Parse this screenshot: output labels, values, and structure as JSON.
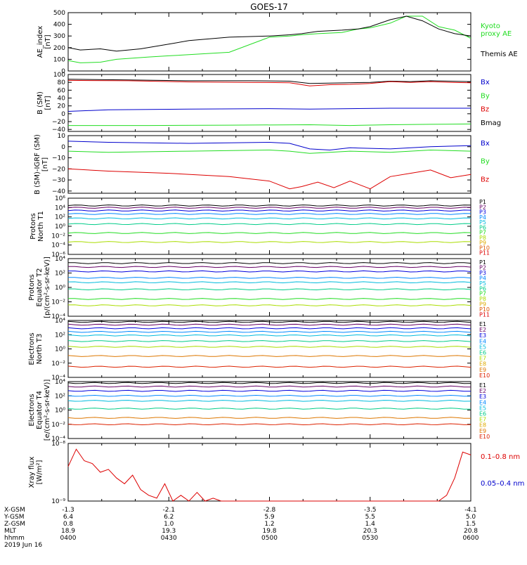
{
  "title": "GOES-17",
  "colors": {
    "black": "#000000",
    "green": "#22dd22",
    "blue": "#0000cc",
    "red": "#dd0000",
    "p": [
      "#000000",
      "#660066",
      "#0000dd",
      "#0088ff",
      "#00bbdd",
      "#00cc88",
      "#22dd22",
      "#aadd00",
      "#ddaa00",
      "#dd5500",
      "#dd0000"
    ],
    "e": [
      "#000000",
      "#660066",
      "#0000dd",
      "#0088ff",
      "#00bbdd",
      "#00cc88",
      "#aadd00",
      "#ddaa00",
      "#dd7700",
      "#dd2200",
      "#dd0000"
    ]
  },
  "footer": {
    "row_labels": [
      "X-GSM",
      "Y-GSM",
      "Z-GSM",
      "MLT",
      "hhmm",
      "2019 Jun 16"
    ],
    "columns": [
      {
        "x_gsm": "-1.3",
        "y_gsm": "6.4",
        "z_gsm": "0.8",
        "mlt": "18.9",
        "hhmm": "0400"
      },
      {
        "x_gsm": "-2.1",
        "y_gsm": "6.2",
        "z_gsm": "1.0",
        "mlt": "19.3",
        "hhmm": "0430"
      },
      {
        "x_gsm": "-2.8",
        "y_gsm": "5.9",
        "z_gsm": "1.2",
        "mlt": "19.8",
        "hhmm": "0500"
      },
      {
        "x_gsm": "-3.5",
        "y_gsm": "5.5",
        "z_gsm": "1.4",
        "mlt": "20.3",
        "hhmm": "0530"
      },
      {
        "x_gsm": "-4.1",
        "y_gsm": "5.0",
        "z_gsm": "1.5",
        "mlt": "20.8",
        "hhmm": "0600"
      }
    ]
  },
  "chart_data": [
    {
      "id": "ae",
      "type": "line",
      "ylabel": [
        "AE_index",
        "[nT]"
      ],
      "ylim": [
        0,
        500
      ],
      "yticks": [
        "0",
        "100",
        "200",
        "300",
        "400",
        "500"
      ],
      "legend": [
        {
          "label": "Kyoto",
          "color": "green"
        },
        {
          "label": "proxy AE",
          "color": "green"
        },
        {
          "label": "Themis AE",
          "color": "black"
        }
      ],
      "series": [
        {
          "name": "Kyoto proxy AE",
          "color": "green",
          "x": [
            0,
            3,
            8,
            12,
            20,
            25,
            30,
            40,
            50,
            55,
            58,
            62,
            68,
            72,
            75,
            80,
            84,
            88,
            92,
            96,
            100
          ],
          "y": [
            90,
            70,
            75,
            100,
            120,
            130,
            140,
            160,
            290,
            300,
            310,
            320,
            330,
            360,
            370,
            410,
            470,
            470,
            380,
            350,
            280
          ]
        },
        {
          "name": "Themis AE",
          "color": "black",
          "x": [
            0,
            3,
            8,
            12,
            18,
            25,
            30,
            40,
            50,
            55,
            58,
            62,
            68,
            72,
            75,
            80,
            84,
            88,
            92,
            96,
            100
          ],
          "y": [
            200,
            180,
            190,
            170,
            190,
            230,
            260,
            290,
            300,
            310,
            320,
            340,
            350,
            360,
            380,
            440,
            470,
            430,
            360,
            320,
            300
          ]
        }
      ]
    },
    {
      "id": "b",
      "type": "line",
      "ylabel": [
        "B (SM)",
        "[nT]"
      ],
      "ylim": [
        -45,
        100
      ],
      "yticks": [
        "−40",
        "−20",
        "0",
        "20",
        "40",
        "60",
        "80",
        "100"
      ],
      "legend": [
        {
          "label": "Bx",
          "color": "blue"
        },
        {
          "label": "By",
          "color": "green"
        },
        {
          "label": "Bz",
          "color": "red"
        },
        {
          "label": "Bmag",
          "color": "black"
        }
      ],
      "series": [
        {
          "name": "Bmag",
          "color": "black",
          "x": [
            0,
            15,
            30,
            45,
            55,
            60,
            65,
            70,
            75,
            80,
            85,
            90,
            95,
            100
          ],
          "y": [
            88,
            86,
            84,
            84,
            83,
            77,
            78,
            79,
            80,
            83,
            82,
            84,
            83,
            82
          ]
        },
        {
          "name": "Bz",
          "color": "red",
          "x": [
            0,
            15,
            30,
            45,
            55,
            60,
            65,
            70,
            75,
            80,
            85,
            90,
            95,
            100
          ],
          "y": [
            85,
            84,
            81,
            80,
            79,
            71,
            74,
            75,
            77,
            82,
            80,
            82,
            80,
            79
          ]
        },
        {
          "name": "Bx",
          "color": "blue",
          "x": [
            0,
            10,
            30,
            50,
            60,
            70,
            80,
            90,
            100
          ],
          "y": [
            6,
            10,
            12,
            13,
            12,
            13,
            14,
            14,
            14
          ]
        },
        {
          "name": "By",
          "color": "green",
          "x": [
            0,
            20,
            40,
            60,
            70,
            80,
            90,
            100
          ],
          "y": [
            -30,
            -30,
            -29,
            -28,
            -30,
            -28,
            -27,
            -26
          ]
        }
      ]
    },
    {
      "id": "bdiff",
      "type": "line",
      "ylabel": [
        "B (SM)-IGRF (SM)",
        "[nT]"
      ],
      "ylim": [
        -42,
        10
      ],
      "yticks": [
        "−40",
        "−30",
        "−20",
        "−10",
        "0",
        "10"
      ],
      "legend": [
        {
          "label": "Bx",
          "color": "blue"
        },
        {
          "label": "By",
          "color": "green"
        },
        {
          "label": "Bz",
          "color": "red"
        }
      ],
      "series": [
        {
          "name": "Bx",
          "color": "blue",
          "x": [
            0,
            10,
            30,
            50,
            55,
            60,
            65,
            70,
            80,
            90,
            100
          ],
          "y": [
            5,
            4,
            3,
            4,
            3,
            -2,
            -3,
            -1,
            -2,
            0,
            1
          ]
        },
        {
          "name": "By",
          "color": "green",
          "x": [
            0,
            10,
            30,
            50,
            55,
            60,
            65,
            70,
            80,
            90,
            100
          ],
          "y": [
            -4,
            -5,
            -4,
            -3,
            -4,
            -6,
            -5,
            -4,
            -5,
            -3,
            -4
          ]
        },
        {
          "name": "Bz",
          "color": "red",
          "x": [
            0,
            10,
            25,
            40,
            50,
            55,
            58,
            62,
            66,
            70,
            75,
            80,
            85,
            90,
            95,
            100
          ],
          "y": [
            -20,
            -22,
            -24,
            -27,
            -31,
            -38,
            -36,
            -32,
            -37,
            -31,
            -38,
            -27,
            -24,
            -21,
            -28,
            -25
          ]
        }
      ]
    },
    {
      "id": "pn",
      "type": "line",
      "ylabel": [
        "Protons",
        "North T1"
      ],
      "ylog": [
        -6,
        4
      ],
      "yticks": [
        "10⁶",
        "10⁴",
        "10²",
        "10⁰",
        "10⁻²",
        "10⁻⁴",
        "10⁻⁶"
      ],
      "legend": [
        "P1",
        "P2",
        "P3",
        "P4",
        "P5",
        "P6",
        "P7",
        "P8",
        "P9",
        "P10",
        "P11"
      ],
      "series": [
        {
          "name": "P1",
          "log10": 2.7
        },
        {
          "name": "P2",
          "log10": 2.3
        },
        {
          "name": "P3",
          "log10": 1.8
        },
        {
          "name": "P4",
          "log10": 1.2
        },
        {
          "name": "P5",
          "log10": 0.4
        },
        {
          "name": "P6",
          "log10": -0.6
        },
        {
          "name": "P7",
          "log10": -2.2
        },
        {
          "name": "P8",
          "log10": -3.8
        }
      ]
    },
    {
      "id": "pe",
      "type": "line",
      "ylabel": [
        "Protons",
        "Equator T2",
        "[p/(cm²-s-sr-keV)]"
      ],
      "ylog": [
        -5,
        4
      ],
      "yticks": [
        "10⁴",
        "10²",
        "10⁰",
        "10⁻²",
        "10⁻⁴"
      ],
      "legend": [
        "P1",
        "P2",
        "P3",
        "P4",
        "P5",
        "P6",
        "P7",
        "P8",
        "P9",
        "P10",
        "P11"
      ],
      "series": [
        {
          "name": "P1",
          "log10": 3.3
        },
        {
          "name": "P2",
          "log10": 2.7
        },
        {
          "name": "P3",
          "log10": 2.0
        },
        {
          "name": "P4",
          "log10": 1.0
        },
        {
          "name": "P5",
          "log10": 0.3
        },
        {
          "name": "P6",
          "log10": -0.8
        },
        {
          "name": "P7",
          "log10": -2.3
        },
        {
          "name": "P8",
          "log10": -3.3
        }
      ]
    },
    {
      "id": "en",
      "type": "line",
      "ylabel": [
        "Electrons",
        "North T3"
      ],
      "ylog": [
        -4,
        4
      ],
      "yticks": [
        "10⁴",
        "10²",
        "10⁰",
        "10⁻²",
        "10⁻⁴"
      ],
      "legend": [
        "E1",
        "E2",
        "E3",
        "E4",
        "E5",
        "E6",
        "E7",
        "E8",
        "E9",
        "E10"
      ],
      "series": [
        {
          "name": "E1",
          "log10": 3.8
        },
        {
          "name": "E2",
          "log10": 3.4
        },
        {
          "name": "E3",
          "log10": 2.9
        },
        {
          "name": "E4",
          "log10": 2.4
        },
        {
          "name": "E5",
          "log10": 1.9
        },
        {
          "name": "E6",
          "log10": 1.1
        },
        {
          "name": "E7",
          "log10": 0.3
        },
        {
          "name": "E9",
          "log10": -1.0
        },
        {
          "name": "E10",
          "log10": -2.5
        }
      ]
    },
    {
      "id": "ee",
      "type": "line",
      "ylabel": [
        "Electrons",
        "Equator T4",
        "[e/(cm²-s-sr-keV)]"
      ],
      "ylog": [
        -4,
        4
      ],
      "yticks": [
        "10⁴",
        "10²",
        "10⁰",
        "10⁻²",
        "10⁻⁴"
      ],
      "legend": [
        "E1",
        "E2",
        "E3",
        "E4",
        "E5",
        "E6",
        "E7",
        "E8",
        "E9",
        "E10"
      ],
      "series": [
        {
          "name": "E1",
          "log10": 3.8
        },
        {
          "name": "E2",
          "log10": 3.3
        },
        {
          "name": "E3",
          "log10": 2.7
        },
        {
          "name": "E4",
          "log10": 2.0
        },
        {
          "name": "E5",
          "log10": 1.3
        },
        {
          "name": "E6",
          "log10": 0.2
        },
        {
          "name": "E9",
          "log10": -1.1
        },
        {
          "name": "E10",
          "log10": -2.0
        }
      ]
    },
    {
      "id": "xray",
      "type": "line",
      "ylabel": [
        "Xray flux",
        "[W/m²]"
      ],
      "ylog": [
        -9,
        -8
      ],
      "yticks": [
        "10⁻⁸",
        "10⁻⁹"
      ],
      "legend": [
        {
          "label": "0.1–0.8 nm",
          "color": "red"
        },
        {
          "label": "0.05–0.4 nm",
          "color": "blue"
        }
      ],
      "series": [
        {
          "name": "0.1–0.8 nm",
          "color": "red",
          "x": [
            0,
            2,
            4,
            6,
            8,
            10,
            12,
            14,
            16,
            18,
            20,
            22,
            24,
            26,
            28,
            30,
            32,
            34,
            36,
            38,
            40,
            44,
            48,
            52,
            56,
            60,
            64,
            68,
            72,
            76,
            80,
            84,
            88,
            90,
            92,
            94,
            96,
            98,
            100
          ],
          "y": [
            -8.4,
            -8.1,
            -8.3,
            -8.35,
            -8.5,
            -8.45,
            -8.6,
            -8.7,
            -8.55,
            -8.8,
            -8.9,
            -8.95,
            -8.7,
            -9.0,
            -8.9,
            -9.0,
            -8.85,
            -9.0,
            -8.95,
            -9.0,
            -9.0,
            -9.0,
            -9.0,
            -9.0,
            -9.0,
            -9.0,
            -9.0,
            -9.0,
            -9.0,
            -9.0,
            -9.0,
            -9.0,
            -9.0,
            -9.0,
            -9.0,
            -8.9,
            -8.6,
            -8.15,
            -8.2
          ]
        }
      ]
    }
  ]
}
